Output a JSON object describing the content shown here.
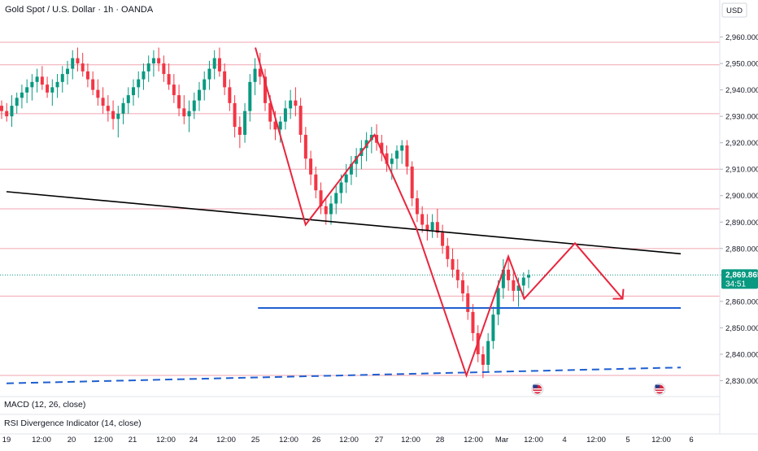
{
  "header": {
    "symbol_title": "Gold Spot / U.S. Dollar · 1h · OANDA",
    "currency": "USD"
  },
  "price_scale": {
    "ticks": [
      "2,960.000",
      "2,950.000",
      "2,940.000",
      "2,930.000",
      "2,920.000",
      "2,910.000",
      "2,900.000",
      "2,890.000",
      "2,880.000",
      "2,870.000",
      "2,860.000",
      "2,850.000",
      "2,840.000",
      "2,830.000"
    ],
    "current_price": "2,869.865",
    "countdown": "34:51",
    "current_price_color": "#089981"
  },
  "time_axis": {
    "labels": [
      "19",
      "12:00",
      "20",
      "12:00",
      "21",
      "12:00",
      "24",
      "12:00",
      "25",
      "12:00",
      "26",
      "12:00",
      "27",
      "12:00",
      "28",
      "12:00",
      "Mar",
      "12:00",
      "4",
      "12:00",
      "5",
      "12:00",
      "6"
    ]
  },
  "indicators": {
    "macd_label": "MACD (12, 26, close)",
    "rsi_label": "RSI Divergence Indicator (14, close)"
  },
  "colors": {
    "bull": "#089981",
    "bear": "#f23645",
    "zigzag": "#e8263f",
    "level_line": "#f0a6b0",
    "trendline": "#000000",
    "support": "#1f5fd0"
  },
  "chart_data": {
    "type": "candlestick",
    "title": "Gold Spot / U.S. Dollar · 1h · OANDA",
    "y_unit": "USD",
    "ylim": [
      2824,
      2974
    ],
    "horizontal_levels": [
      2958,
      2949.5,
      2931,
      2910,
      2895,
      2880,
      2862,
      2832
    ],
    "trendline": {
      "color": "black",
      "from": [
        "19 00:00",
        2901.5
      ],
      "to": [
        "Mar 5 20:00",
        2878
      ]
    },
    "support_line": {
      "style": "solid",
      "color": "blue",
      "level": 2857.5
    },
    "rising_support": {
      "style": "dashed",
      "color": "blue",
      "from": [
        "19 00:00",
        2829
      ],
      "to": [
        "Mar 5 20:00",
        2835
      ]
    },
    "zigzag_path": [
      [
        "25 00:00",
        2956
      ],
      [
        "25 19:00",
        2889
      ],
      [
        "26 22:00",
        2923
      ],
      [
        "27 14:00",
        2888
      ],
      [
        "28 10:00",
        2832
      ],
      [
        "Mar 3 04:00",
        2877
      ],
      [
        "Mar 3 10:00",
        2861
      ],
      [
        "Mar 4 04:00",
        2882
      ],
      [
        "Mar 4 22:00",
        2861
      ]
    ],
    "event_markers": [
      {
        "label": "US economic event",
        "time": "Mar 3 15:00"
      },
      {
        "label": "US economic event",
        "time": "Mar 5 12:00"
      }
    ],
    "candles": [
      [
        2934,
        2936,
        2929,
        2932
      ],
      [
        2932,
        2935,
        2928,
        2930
      ],
      [
        2930,
        2938,
        2926,
        2934
      ],
      [
        2934,
        2939,
        2931,
        2937
      ],
      [
        2937,
        2942,
        2933,
        2939
      ],
      [
        2939,
        2944,
        2935,
        2941
      ],
      [
        2941,
        2946,
        2936,
        2943
      ],
      [
        2943,
        2948,
        2939,
        2945
      ],
      [
        2945,
        2949,
        2940,
        2942
      ],
      [
        2942,
        2945,
        2937,
        2939
      ],
      [
        2939,
        2944,
        2934,
        2941
      ],
      [
        2941,
        2946,
        2937,
        2943
      ],
      [
        2943,
        2949,
        2939,
        2946
      ],
      [
        2946,
        2951,
        2942,
        2948
      ],
      [
        2948,
        2955,
        2944,
        2952
      ],
      [
        2952,
        2956,
        2947,
        2950
      ],
      [
        2950,
        2954,
        2945,
        2947
      ],
      [
        2947,
        2950,
        2941,
        2944
      ],
      [
        2944,
        2947,
        2938,
        2940
      ],
      [
        2940,
        2944,
        2934,
        2937
      ],
      [
        2937,
        2941,
        2931,
        2934
      ],
      [
        2934,
        2938,
        2928,
        2932
      ],
      [
        2932,
        2936,
        2925,
        2929
      ],
      [
        2929,
        2934,
        2922,
        2931
      ],
      [
        2931,
        2937,
        2927,
        2935
      ],
      [
        2935,
        2941,
        2931,
        2938
      ],
      [
        2938,
        2944,
        2934,
        2941
      ],
      [
        2941,
        2947,
        2937,
        2944
      ],
      [
        2944,
        2950,
        2940,
        2947
      ],
      [
        2947,
        2953,
        2943,
        2950
      ],
      [
        2950,
        2955,
        2945,
        2952
      ],
      [
        2952,
        2956,
        2947,
        2950
      ],
      [
        2950,
        2953,
        2943,
        2946
      ],
      [
        2946,
        2950,
        2940,
        2942
      ],
      [
        2942,
        2946,
        2935,
        2938
      ],
      [
        2938,
        2942,
        2930,
        2933
      ],
      [
        2933,
        2938,
        2927,
        2930
      ],
      [
        2930,
        2936,
        2924,
        2932
      ],
      [
        2932,
        2939,
        2929,
        2936
      ],
      [
        2936,
        2943,
        2932,
        2940
      ],
      [
        2940,
        2947,
        2936,
        2944
      ],
      [
        2944,
        2951,
        2940,
        2948
      ],
      [
        2948,
        2955,
        2944,
        2952
      ],
      [
        2952,
        2956,
        2945,
        2947
      ],
      [
        2947,
        2950,
        2938,
        2941
      ],
      [
        2941,
        2944,
        2932,
        2935
      ],
      [
        2935,
        2938,
        2922,
        2926
      ],
      [
        2926,
        2930,
        2918,
        2923
      ],
      [
        2923,
        2935,
        2920,
        2932
      ],
      [
        2932,
        2946,
        2928,
        2943
      ],
      [
        2943,
        2952,
        2938,
        2948
      ],
      [
        2948,
        2954,
        2942,
        2945
      ],
      [
        2945,
        2948,
        2932,
        2935
      ],
      [
        2935,
        2938,
        2925,
        2928
      ],
      [
        2928,
        2932,
        2921,
        2925
      ],
      [
        2925,
        2930,
        2920,
        2928
      ],
      [
        2928,
        2936,
        2925,
        2933
      ],
      [
        2933,
        2940,
        2929,
        2936
      ],
      [
        2936,
        2941,
        2930,
        2934
      ],
      [
        2934,
        2937,
        2920,
        2923
      ],
      [
        2923,
        2926,
        2910,
        2914
      ],
      [
        2914,
        2917,
        2904,
        2908
      ],
      [
        2908,
        2911,
        2899,
        2902
      ],
      [
        2902,
        2905,
        2893,
        2896
      ],
      [
        2896,
        2899,
        2889,
        2893
      ],
      [
        2893,
        2900,
        2889,
        2897
      ],
      [
        2897,
        2904,
        2893,
        2901
      ],
      [
        2901,
        2908,
        2897,
        2905
      ],
      [
        2905,
        2912,
        2901,
        2908
      ],
      [
        2908,
        2915,
        2904,
        2912
      ],
      [
        2912,
        2918,
        2907,
        2915
      ],
      [
        2915,
        2921,
        2910,
        2918
      ],
      [
        2918,
        2924,
        2913,
        2921
      ],
      [
        2921,
        2926,
        2916,
        2923
      ],
      [
        2923,
        2927,
        2917,
        2920
      ],
      [
        2920,
        2923,
        2913,
        2916
      ],
      [
        2916,
        2919,
        2909,
        2912
      ],
      [
        2912,
        2916,
        2906,
        2914
      ],
      [
        2914,
        2919,
        2910,
        2917
      ],
      [
        2917,
        2921,
        2912,
        2919
      ],
      [
        2919,
        2921,
        2908,
        2911
      ],
      [
        2911,
        2913,
        2896,
        2899
      ],
      [
        2899,
        2902,
        2890,
        2893
      ],
      [
        2893,
        2896,
        2886,
        2889
      ],
      [
        2889,
        2893,
        2883,
        2887
      ],
      [
        2887,
        2893,
        2884,
        2890
      ],
      [
        2890,
        2895,
        2884,
        2886
      ],
      [
        2886,
        2889,
        2878,
        2881
      ],
      [
        2881,
        2884,
        2873,
        2876
      ],
      [
        2876,
        2880,
        2869,
        2872
      ],
      [
        2872,
        2876,
        2865,
        2868
      ],
      [
        2868,
        2871,
        2860,
        2863
      ],
      [
        2863,
        2866,
        2853,
        2856
      ],
      [
        2856,
        2859,
        2845,
        2848
      ],
      [
        2848,
        2851,
        2837,
        2840
      ],
      [
        2840,
        2843,
        2831,
        2836
      ],
      [
        2836,
        2848,
        2833,
        2845
      ],
      [
        2845,
        2858,
        2842,
        2855
      ],
      [
        2855,
        2868,
        2851,
        2865
      ],
      [
        2865,
        2876,
        2861,
        2872
      ],
      [
        2872,
        2877,
        2864,
        2868
      ],
      [
        2868,
        2872,
        2860,
        2864
      ],
      [
        2864,
        2869,
        2858,
        2866
      ],
      [
        2866,
        2871,
        2861,
        2869
      ],
      [
        2869,
        2872,
        2865,
        2870
      ]
    ]
  }
}
